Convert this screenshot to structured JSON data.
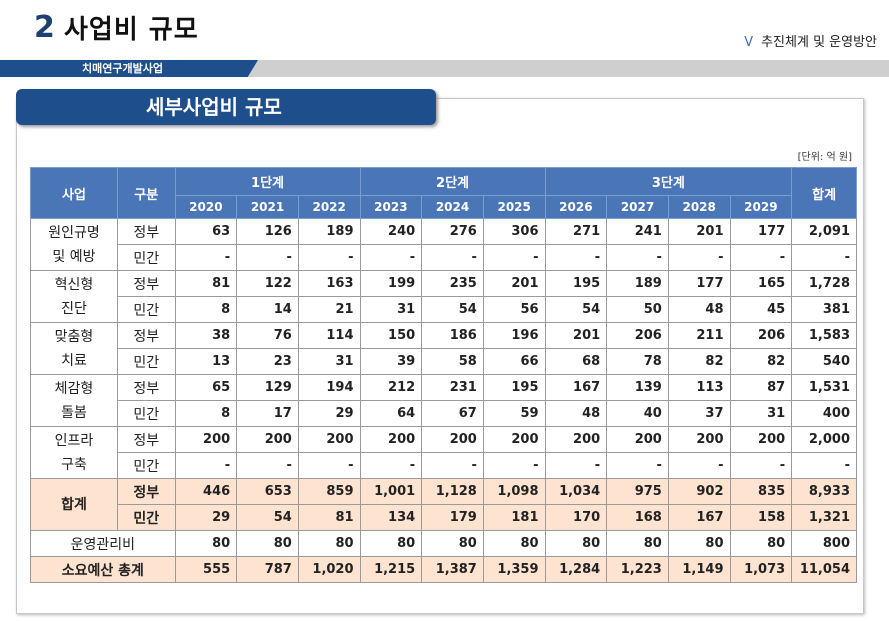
{
  "header": {
    "number": "2",
    "title": "사업비 규모",
    "right_marker": "Ⅴ",
    "right_text": "추진체계 및 운영방안",
    "band_label": "치매연구개발사업"
  },
  "panel": {
    "title": "세부사업비 규모",
    "unit": "[단위: 억 원]"
  },
  "table": {
    "col_project": "사업",
    "col_type": "구분",
    "col_total": "합계",
    "stages": [
      "1단계",
      "2단계",
      "3단계"
    ],
    "years": [
      "2020",
      "2021",
      "2022",
      "2023",
      "2024",
      "2025",
      "2026",
      "2027",
      "2028",
      "2029"
    ],
    "groups": [
      {
        "label": "원인규명\n및 예방",
        "rows": [
          {
            "type": "정부",
            "values": [
              "63",
              "126",
              "189",
              "240",
              "276",
              "306",
              "271",
              "241",
              "201",
              "177"
            ],
            "total": "2,091"
          },
          {
            "type": "민간",
            "values": [
              "-",
              "-",
              "-",
              "-",
              "-",
              "-",
              "-",
              "-",
              "-",
              "-"
            ],
            "total": "-"
          }
        ]
      },
      {
        "label": "혁신형\n진단",
        "rows": [
          {
            "type": "정부",
            "values": [
              "81",
              "122",
              "163",
              "199",
              "235",
              "201",
              "195",
              "189",
              "177",
              "165"
            ],
            "total": "1,728"
          },
          {
            "type": "민간",
            "values": [
              "8",
              "14",
              "21",
              "31",
              "54",
              "56",
              "54",
              "50",
              "48",
              "45"
            ],
            "total": "381"
          }
        ]
      },
      {
        "label": "맞춤형\n치료",
        "rows": [
          {
            "type": "정부",
            "values": [
              "38",
              "76",
              "114",
              "150",
              "186",
              "196",
              "201",
              "206",
              "211",
              "206"
            ],
            "total": "1,583"
          },
          {
            "type": "민간",
            "values": [
              "13",
              "23",
              "31",
              "39",
              "58",
              "66",
              "68",
              "78",
              "82",
              "82"
            ],
            "total": "540"
          }
        ]
      },
      {
        "label": "체감형\n돌봄",
        "rows": [
          {
            "type": "정부",
            "values": [
              "65",
              "129",
              "194",
              "212",
              "231",
              "195",
              "167",
              "139",
              "113",
              "87"
            ],
            "total": "1,531"
          },
          {
            "type": "민간",
            "values": [
              "8",
              "17",
              "29",
              "64",
              "67",
              "59",
              "48",
              "40",
              "37",
              "31"
            ],
            "total": "400"
          }
        ]
      },
      {
        "label": "인프라\n구축",
        "rows": [
          {
            "type": "정부",
            "values": [
              "200",
              "200",
              "200",
              "200",
              "200",
              "200",
              "200",
              "200",
              "200",
              "200"
            ],
            "total": "2,000"
          },
          {
            "type": "민간",
            "values": [
              "-",
              "-",
              "-",
              "-",
              "-",
              "-",
              "-",
              "-",
              "-",
              "-"
            ],
            "total": "-"
          }
        ]
      }
    ],
    "sum": {
      "label": "합계",
      "rows": [
        {
          "type": "정부",
          "values": [
            "446",
            "653",
            "859",
            "1,001",
            "1,128",
            "1,098",
            "1,034",
            "975",
            "902",
            "835"
          ],
          "total": "8,933"
        },
        {
          "type": "민간",
          "values": [
            "29",
            "54",
            "81",
            "134",
            "179",
            "181",
            "170",
            "168",
            "167",
            "158"
          ],
          "total": "1,321"
        }
      ]
    },
    "ops": {
      "label": "운영관리비",
      "values": [
        "80",
        "80",
        "80",
        "80",
        "80",
        "80",
        "80",
        "80",
        "80",
        "80"
      ],
      "total": "800"
    },
    "grand": {
      "label": "소요예산 총계",
      "values": [
        "555",
        "787",
        "1,020",
        "1,215",
        "1,387",
        "1,359",
        "1,284",
        "1,223",
        "1,149",
        "1,073"
      ],
      "total": "11,054"
    }
  }
}
